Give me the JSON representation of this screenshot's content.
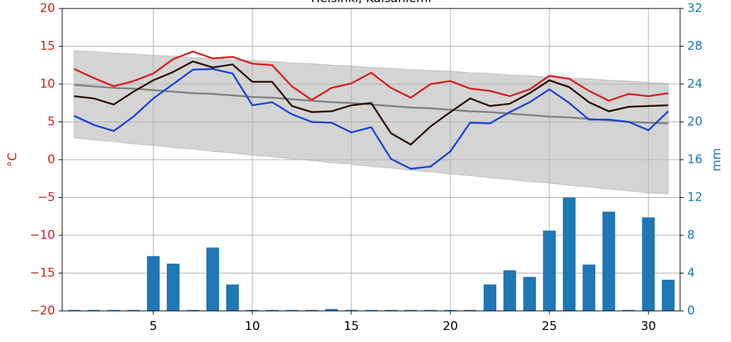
{
  "chart_data": {
    "type": "line",
    "title": "Helsinki, Kaisaniemi",
    "ylabel": "°C",
    "y2label": "mm",
    "x": [
      1,
      2,
      3,
      4,
      5,
      6,
      7,
      8,
      9,
      10,
      11,
      12,
      13,
      14,
      15,
      16,
      17,
      18,
      19,
      20,
      21,
      22,
      23,
      24,
      25,
      26,
      27,
      28,
      29,
      30,
      31
    ],
    "xlim": [
      0.4,
      31.6
    ],
    "xticks": [
      5,
      10,
      15,
      20,
      25,
      30
    ],
    "ylim": [
      -20,
      20
    ],
    "yticks": [
      {
        "value": -20,
        "label": "−20"
      },
      {
        "value": -15,
        "label": "−15"
      },
      {
        "value": -10,
        "label": "−10"
      },
      {
        "value": -5,
        "label": "−5"
      },
      0,
      5,
      10,
      15,
      20
    ],
    "y2lim": [
      0,
      32
    ],
    "y2ticks": [
      0,
      4,
      8,
      12,
      16,
      20,
      24,
      28,
      32
    ],
    "grid": true,
    "ycolor": "#d62020",
    "y2color": "#1f77b4",
    "band": {
      "color": "#d4d4d4",
      "upper": [
        14.4,
        14.3,
        14.1,
        14.0,
        13.8,
        13.7,
        13.5,
        13.4,
        13.2,
        13.1,
        13.0,
        12.8,
        12.7,
        12.5,
        12.4,
        12.2,
        12.1,
        11.9,
        11.8,
        11.7,
        11.5,
        11.4,
        11.2,
        11.1,
        10.9,
        10.8,
        10.7,
        10.5,
        10.4,
        10.2,
        10.1
      ],
      "lower": [
        2.9,
        2.6,
        2.4,
        2.1,
        1.9,
        1.6,
        1.4,
        1.1,
        0.9,
        0.6,
        0.4,
        0.1,
        -0.1,
        -0.4,
        -0.6,
        -0.9,
        -1.1,
        -1.4,
        -1.6,
        -1.9,
        -2.1,
        -2.4,
        -2.6,
        -2.9,
        -3.1,
        -3.4,
        -3.6,
        -3.9,
        -4.1,
        -4.4,
        -4.5
      ]
    },
    "bars": {
      "color": "#1f77b4",
      "axis": "y2",
      "values": [
        0.1,
        0.1,
        0.1,
        0.1,
        5.8,
        5.0,
        0.1,
        6.7,
        2.8,
        0.1,
        0.1,
        0.1,
        0.1,
        0.2,
        0.1,
        0.1,
        0.1,
        0.1,
        0.1,
        0.1,
        0.1,
        2.8,
        4.3,
        3.6,
        8.5,
        12.0,
        4.9,
        10.5,
        0.1,
        9.9,
        3.3
      ]
    },
    "series": [
      {
        "color": "#808080",
        "values": [
          9.9,
          9.7,
          9.5,
          9.4,
          9.2,
          9.0,
          8.8,
          8.7,
          8.5,
          8.3,
          8.2,
          8.0,
          7.8,
          7.6,
          7.5,
          7.3,
          7.1,
          6.9,
          6.8,
          6.6,
          6.4,
          6.3,
          6.1,
          5.9,
          5.7,
          5.6,
          5.4,
          5.2,
          5.0,
          4.9,
          4.8
        ]
      },
      {
        "color": "#d62020",
        "values": [
          12.0,
          10.8,
          9.7,
          10.4,
          11.4,
          13.3,
          14.3,
          13.4,
          13.6,
          12.7,
          12.5,
          9.7,
          7.9,
          9.5,
          10.1,
          11.5,
          9.5,
          8.2,
          10.0,
          10.4,
          9.4,
          9.1,
          8.4,
          9.3,
          11.1,
          10.7,
          9.1,
          7.8,
          8.7,
          8.4,
          8.8
        ]
      },
      {
        "color": "#1a45d8",
        "values": [
          5.8,
          4.6,
          3.8,
          5.7,
          8.1,
          10.0,
          11.9,
          12.0,
          11.4,
          7.2,
          7.6,
          6.0,
          5.0,
          4.9,
          3.6,
          4.3,
          0.1,
          -1.2,
          -0.9,
          1.1,
          4.9,
          4.8,
          6.3,
          7.6,
          9.3,
          7.5,
          5.3,
          5.3,
          5.0,
          3.9,
          6.4
        ]
      },
      {
        "color": "#2b1005",
        "values": [
          8.4,
          8.1,
          7.3,
          9.0,
          10.5,
          11.6,
          13.0,
          12.2,
          12.6,
          10.3,
          10.3,
          7.1,
          6.3,
          6.4,
          7.2,
          7.5,
          3.5,
          2.0,
          4.4,
          6.3,
          8.1,
          7.1,
          7.4,
          8.8,
          10.5,
          9.6,
          7.6,
          6.4,
          7.0,
          7.1,
          7.2
        ]
      }
    ]
  }
}
